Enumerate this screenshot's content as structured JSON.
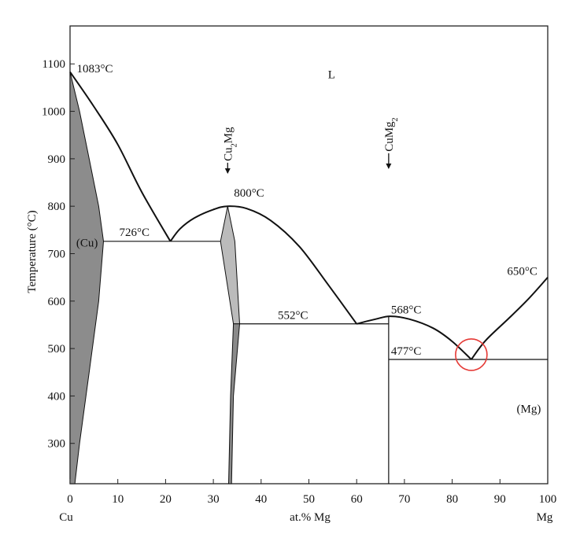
{
  "chart_data": {
    "type": "phase-diagram",
    "xlabel": "at.% Mg",
    "ylabel": "Temperature (°C)",
    "x_end_labels": {
      "left": "Cu",
      "right": "Mg"
    },
    "xlim": [
      0,
      100
    ],
    "ylim": [
      215,
      1180
    ],
    "x_ticks": [
      0,
      10,
      20,
      30,
      40,
      50,
      60,
      70,
      80,
      90,
      100
    ],
    "y_ticks": [
      300,
      400,
      500,
      600,
      700,
      800,
      900,
      1000,
      1100
    ],
    "liquidus": [
      {
        "name": "liquidus-cu-side",
        "points": [
          [
            0,
            1083
          ],
          [
            5,
            1010
          ],
          [
            10,
            930
          ],
          [
            15,
            830
          ],
          [
            21,
            726
          ]
        ]
      },
      {
        "name": "liquidus-cu2mg-dome",
        "points": [
          [
            21,
            726
          ],
          [
            23,
            752
          ],
          [
            26,
            775
          ],
          [
            30,
            793
          ],
          [
            33,
            800
          ],
          [
            37,
            795
          ],
          [
            42,
            770
          ],
          [
            48,
            715
          ],
          [
            54,
            635
          ],
          [
            60,
            552
          ]
        ]
      },
      {
        "name": "liquidus-cumg2-dome",
        "points": [
          [
            60,
            552
          ],
          [
            64,
            562
          ],
          [
            67,
            568
          ],
          [
            71,
            562
          ],
          [
            76,
            543
          ],
          [
            80,
            515
          ],
          [
            84,
            477
          ]
        ]
      },
      {
        "name": "liquidus-mg-side",
        "points": [
          [
            84,
            477
          ],
          [
            87,
            517
          ],
          [
            92,
            565
          ],
          [
            96,
            605
          ],
          [
            100,
            650
          ]
        ]
      }
    ],
    "phase_regions": [
      {
        "name": "cu-solid-solution",
        "fill": "#8c8c8c",
        "points": [
          [
            0,
            1083
          ],
          [
            2,
            1000
          ],
          [
            4,
            900
          ],
          [
            6,
            800
          ],
          [
            7,
            726
          ],
          [
            6,
            600
          ],
          [
            4,
            450
          ],
          [
            2,
            300
          ],
          [
            1,
            215
          ],
          [
            0,
            215
          ]
        ]
      },
      {
        "name": "cu2mg-upper",
        "fill": "#bbbbbb",
        "points": [
          [
            31.5,
            726
          ],
          [
            33,
            800
          ],
          [
            34.5,
            726
          ],
          [
            35.5,
            552
          ],
          [
            34.2,
            552
          ]
        ]
      },
      {
        "name": "cu2mg-lower",
        "fill": "#8a8a8a",
        "points": [
          [
            34.2,
            552
          ],
          [
            35.5,
            552
          ],
          [
            34.2,
            400
          ],
          [
            33.8,
            215
          ],
          [
            33.2,
            215
          ],
          [
            33.6,
            400
          ]
        ]
      }
    ],
    "isotherms": [
      {
        "name": "eutectic-726",
        "x_from": 7,
        "x_to": 31.5,
        "t": 726
      },
      {
        "name": "eutectic-552",
        "x_from": 35.5,
        "x_to": 66.7,
        "t": 552
      },
      {
        "name": "eutectic-477",
        "x_from": 66.7,
        "x_to": 100,
        "t": 477
      }
    ],
    "compound_lines": [
      {
        "name": "cumg2-line",
        "x": 66.7,
        "t_from": 215,
        "t_to": 568
      }
    ],
    "annotations": [
      {
        "name": "cu-melting-label",
        "text": "1083°C",
        "x": 1.4,
        "t": 1082
      },
      {
        "name": "cu-phase-label",
        "text": "(Cu)",
        "x": 1.3,
        "t": 715
      },
      {
        "name": "eutectic-726-label",
        "text": "726°C",
        "x": 10.3,
        "t": 737
      },
      {
        "name": "cu2mg-max-label",
        "text": "800°C",
        "x": 34.3,
        "t": 820
      },
      {
        "name": "eutectic-552-label",
        "text": "552°C",
        "x": 43.5,
        "t": 562
      },
      {
        "name": "cumg2-max-label",
        "text": "568°C",
        "x": 67.2,
        "t": 574
      },
      {
        "name": "eutectic-477-label",
        "text": "477°C",
        "x": 67.2,
        "t": 487
      },
      {
        "name": "mg-melting-label",
        "text": "650°C",
        "x": 91.5,
        "t": 655
      },
      {
        "name": "mg-phase-label",
        "text": "(Mg)",
        "x": 93.5,
        "t": 365
      },
      {
        "name": "liquid-label",
        "text": "L",
        "x": 54,
        "t": 1070
      }
    ],
    "compounds": [
      {
        "name": "cu2mg",
        "base": "Cu",
        "sub": "2",
        "tail": "Mg",
        "x": 33,
        "t_top": 895,
        "t_arrow": 870
      },
      {
        "name": "cumg2",
        "base": "CuMg",
        "sub": "2",
        "tail": "",
        "x": 66.7,
        "t_top": 915,
        "t_arrow": 880
      }
    ],
    "highlight": {
      "name": "eutectic-highlight-circle",
      "x": 84,
      "t": 487,
      "color": "#e53935"
    }
  }
}
